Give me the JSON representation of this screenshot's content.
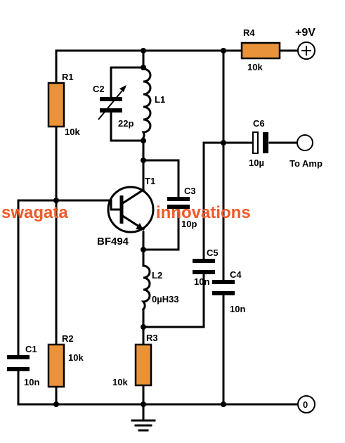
{
  "supply": {
    "label": "+9V"
  },
  "output": {
    "label": "To Amp"
  },
  "ground_terminal": {
    "label": "0"
  },
  "watermark": {
    "left": "swagata",
    "right": "innovations"
  },
  "transistor": {
    "ref": "T1",
    "part": "BF494"
  },
  "components": {
    "r1": {
      "ref": "R1",
      "value": "10k"
    },
    "r2": {
      "ref": "R2",
      "value": "10k"
    },
    "r3": {
      "ref": "R3",
      "value": "10k"
    },
    "r4": {
      "ref": "R4",
      "value": "10k"
    },
    "c1": {
      "ref": "C1",
      "value": "10n"
    },
    "c2": {
      "ref": "C2",
      "value": "22p"
    },
    "c3": {
      "ref": "C3",
      "value": "10p"
    },
    "c4": {
      "ref": "C4",
      "value": "10n"
    },
    "c5": {
      "ref": "C5",
      "value": "10n"
    },
    "c6": {
      "ref": "C6",
      "value": "10µ"
    },
    "l1": {
      "ref": "L1"
    },
    "l2": {
      "ref": "L2",
      "value": "0µH33"
    }
  },
  "colors": {
    "resistor_fill": "#e8923a",
    "watermark": "#f05a28",
    "wire": "#000000"
  }
}
